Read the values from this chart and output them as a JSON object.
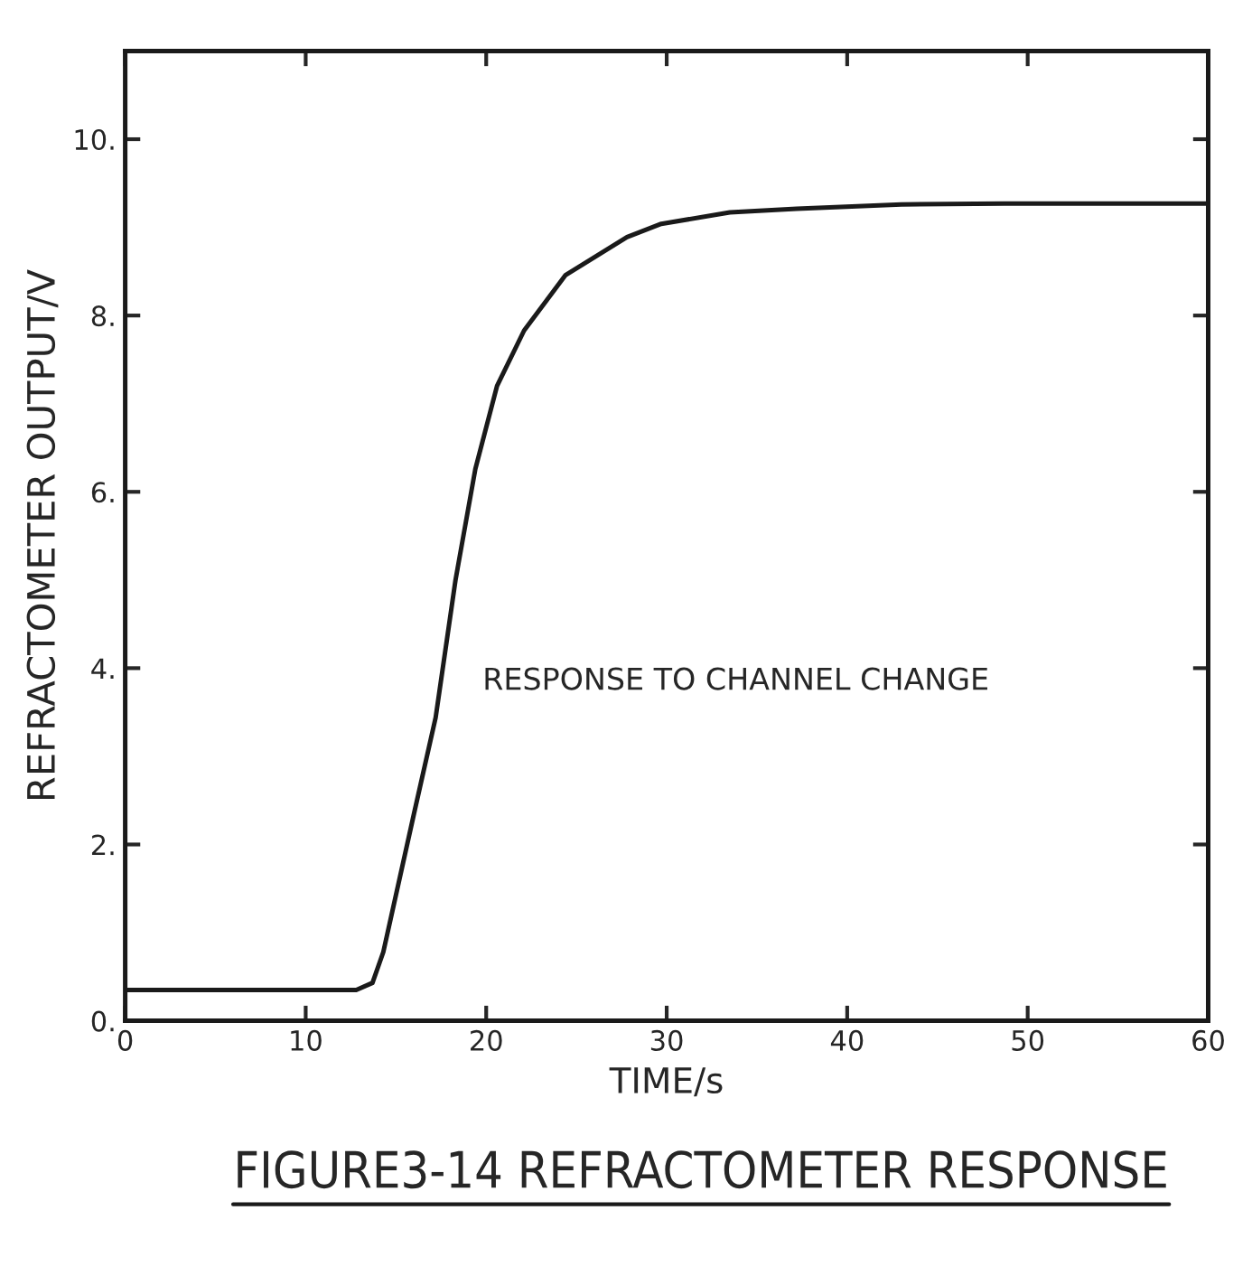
{
  "chart_data": {
    "type": "line",
    "title": "FIGURE3-14 REFRACTOMETER RESPONSE",
    "xlabel": "TIME/s",
    "ylabel": "REFRACTOMETER OUTPUT/V",
    "annotations": [
      "RESPONSE TO CHANNEL CHANGE"
    ],
    "series": [
      {
        "color": "#1a1a1a",
        "x": [
          0,
          12.8,
          13.7,
          14.3,
          16.0,
          17.2,
          18.3,
          19.4,
          20.6,
          22.1,
          24.4,
          27.8,
          29.7,
          33.5,
          37.2,
          43.0,
          48.7,
          60
        ],
        "values": [
          0.35,
          0.35,
          0.43,
          0.78,
          2.35,
          3.44,
          5.0,
          6.26,
          7.2,
          7.83,
          8.46,
          8.89,
          9.04,
          9.17,
          9.21,
          9.26,
          9.27,
          9.27
        ]
      }
    ],
    "xlim": [
      0,
      60
    ],
    "ylim": [
      0,
      11
    ],
    "xticks": [
      0,
      10,
      20,
      30,
      40,
      50,
      60
    ],
    "yticks": [
      {
        "value": 0,
        "label": "0."
      },
      {
        "value": 2,
        "label": "2."
      },
      {
        "value": 4,
        "label": "4."
      },
      {
        "value": 6,
        "label": "6."
      },
      {
        "value": 8,
        "label": "8."
      },
      {
        "value": 10,
        "label": "10."
      }
    ],
    "grid": false,
    "legend": false,
    "marker": "none",
    "line_style": "solid"
  }
}
